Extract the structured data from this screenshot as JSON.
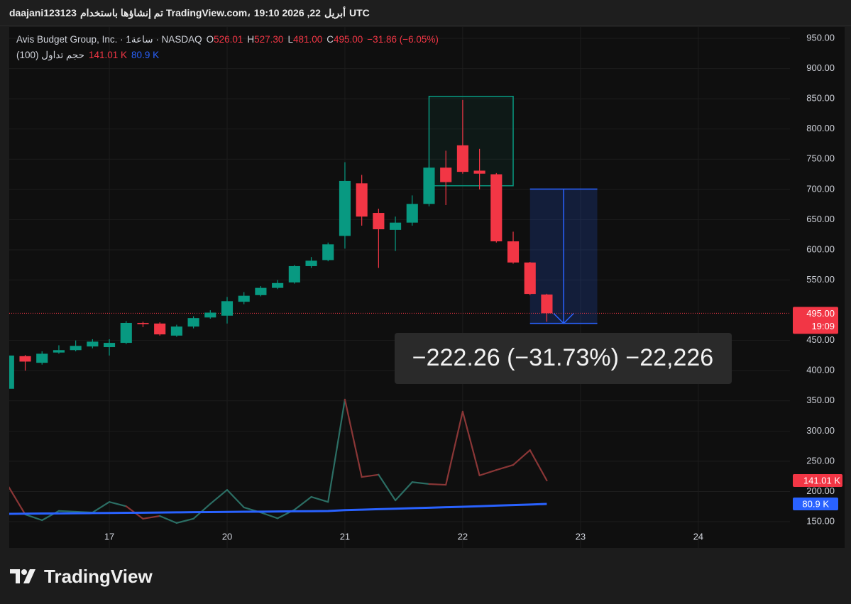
{
  "header": {
    "parts": [
      "daajani123123",
      "تم إنشاؤها باستخدام TradingView.com،",
      "19:10 2026 ,22",
      "أبريل",
      "UTC"
    ]
  },
  "chart_data": {
    "type": "candlestick",
    "legend": {
      "symbol": "Avis Budget Group, Inc. · 1ساعة · NASDAQ",
      "ohlc": [
        {
          "key": "O",
          "value": "526.01"
        },
        {
          "key": "H",
          "value": "527.30"
        },
        {
          "key": "L",
          "value": "481.00"
        },
        {
          "key": "C",
          "value": "495.00"
        }
      ],
      "change": "−31.86 (−6.05%)"
    },
    "x": [
      0,
      1,
      2,
      3,
      4,
      5,
      6,
      7,
      8,
      9,
      10,
      11,
      12,
      13,
      14,
      15,
      16,
      17,
      18,
      19,
      20,
      21,
      22,
      23,
      24,
      25,
      26,
      27,
      28,
      29,
      30,
      31,
      32
    ],
    "xlim": [
      0.05,
      46.45
    ],
    "xticks": [
      {
        "value": 6,
        "label": "17"
      },
      {
        "value": 13,
        "label": "20"
      },
      {
        "value": 20,
        "label": "21"
      },
      {
        "value": 27,
        "label": "22"
      },
      {
        "value": 34,
        "label": "23"
      },
      {
        "value": 41,
        "label": "24"
      }
    ],
    "open": [
      370,
      424,
      413,
      430,
      434,
      440,
      439,
      446,
      479,
      478,
      458,
      473,
      488,
      491,
      514,
      525,
      537,
      546,
      573,
      583,
      623,
      710,
      661,
      633,
      645,
      676,
      736,
      773,
      731,
      725,
      614,
      579,
      526.01
    ],
    "high": [
      428,
      426,
      432,
      442,
      450,
      452,
      452,
      482,
      481,
      480,
      476,
      490,
      500,
      522,
      530,
      540,
      550,
      575,
      588,
      612,
      745,
      724,
      668,
      655,
      690,
      738,
      764,
      848,
      767,
      727,
      630,
      580,
      527.3
    ],
    "low": [
      368,
      400,
      410,
      428,
      432,
      437,
      425,
      444,
      472,
      458,
      456,
      470,
      486,
      478,
      510,
      523,
      535,
      544,
      570,
      581,
      602,
      640,
      570,
      598,
      640,
      672,
      674,
      726,
      700,
      612,
      577,
      525,
      481
    ],
    "close": [
      425,
      415,
      428,
      434,
      441,
      448,
      446,
      479,
      477,
      460,
      473,
      487,
      496,
      515,
      524,
      537,
      545,
      573,
      582,
      609,
      714,
      655,
      634,
      645,
      676,
      736,
      712,
      729,
      726,
      614,
      579,
      527,
      495
    ],
    "up_color": "#089981",
    "down_color": "#f23645",
    "ylim": [
      106.6,
      968.8
    ],
    "yticks": [
      {
        "value": 950,
        "label": "950.00"
      },
      {
        "value": 900,
        "label": "900.00"
      },
      {
        "value": 850,
        "label": "850.00"
      },
      {
        "value": 800,
        "label": "800.00"
      },
      {
        "value": 750,
        "label": "750.00"
      },
      {
        "value": 700,
        "label": "700.00"
      },
      {
        "value": 650,
        "label": "650.00"
      },
      {
        "value": 600,
        "label": "600.00"
      },
      {
        "value": 550,
        "label": "550.00"
      },
      {
        "value": 450,
        "label": "450.00"
      },
      {
        "value": 400,
        "label": "400.00"
      },
      {
        "value": 350,
        "label": "350.00"
      },
      {
        "value": 300,
        "label": "300.00"
      },
      {
        "value": 250,
        "label": "250.00"
      },
      {
        "value": 200,
        "label": "200.00"
      },
      {
        "value": 150,
        "label": "150.00"
      }
    ],
    "grid": true,
    "last_label": "495.00",
    "last_time": "19:09",
    "volume": {
      "name": "حجم تداول (100)",
      "values": [
        126,
        54,
        39,
        63,
        61,
        59,
        86,
        75,
        43,
        50,
        32,
        43,
        81,
        117,
        72,
        59,
        44,
        66,
        99,
        86,
        349,
        150,
        156,
        90,
        137,
        132,
        130,
        318,
        154,
        168,
        181,
        219,
        141.01
      ],
      "up_color": "#2b6e64",
      "down_color": "#8a3636",
      "last_label": "141.01 K",
      "ma_values": [
        55.5,
        55.9,
        56.3,
        56.6,
        57.0,
        57.4,
        57.8,
        58.2,
        58.5,
        58.9,
        59.3,
        59.7,
        60.1,
        60.4,
        60.8,
        61.2,
        61.6,
        62.0,
        62.3,
        62.7,
        65,
        66.2,
        67.4,
        68.7,
        69.9,
        71.1,
        72.4,
        73.6,
        75.1,
        76.5,
        78.0,
        79.4,
        80.9
      ],
      "ma_color": "#2962ff",
      "ma_last_label": "80.9 K",
      "y2lim": [
        -32,
        1305
      ]
    },
    "rectangle": {
      "x": [
        25,
        30
      ],
      "y": [
        854,
        706
      ],
      "color": "#089981"
    },
    "measure": {
      "x": [
        31,
        35
      ],
      "y": [
        700.47,
        478.21
      ],
      "color": "#2962ff",
      "label": "−222.26 (−31.73%) −22,226"
    }
  },
  "footer": {
    "logo": "TradingView"
  }
}
